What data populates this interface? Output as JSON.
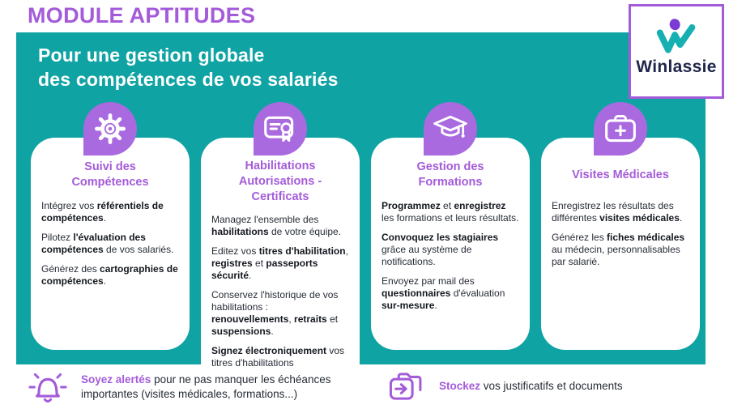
{
  "header": {
    "title": "MODULE APTITUDES",
    "heading": "Pour une gestion globale\ndes compétences de vos salariés",
    "brand": "Winlassie"
  },
  "colors": {
    "purple": "#A45BD9",
    "teal": "#10A3A4",
    "bubble": "#A969DF",
    "navy": "#20264A",
    "body": "#262C36",
    "logo_teal": "#16AFB2",
    "logo_purple": "#7B3BD4"
  },
  "cards": [
    {
      "icon": "gear-icon",
      "title": "Suivi des\nCompétences",
      "paragraphs": [
        [
          {
            "t": "Intégrez vos "
          },
          {
            "t": "référentiels de compétences",
            "b": true
          },
          {
            "t": "."
          }
        ],
        [
          {
            "t": "Pilotez "
          },
          {
            "t": "l'évaluation des compétences",
            "b": true
          },
          {
            "t": " de vos salariés."
          }
        ],
        [
          {
            "t": "Générez des "
          },
          {
            "t": "cartographies de compétences",
            "b": true
          },
          {
            "t": "."
          }
        ]
      ]
    },
    {
      "icon": "certificate-icon",
      "title": "Habilitations\nAutorisations - Certificats",
      "paragraphs": [
        [
          {
            "t": "Managez l'ensemble des "
          },
          {
            "t": "habilitations",
            "b": true
          },
          {
            "t": " de votre équipe."
          }
        ],
        [
          {
            "t": "Editez vos "
          },
          {
            "t": "titres d'habilitation",
            "b": true
          },
          {
            "t": ", "
          },
          {
            "t": "registres",
            "b": true
          },
          {
            "t": " et "
          },
          {
            "t": "passeports sécurité",
            "b": true
          },
          {
            "t": "."
          }
        ],
        [
          {
            "t": "Conservez l'historique de vos habilitations : "
          },
          {
            "t": "renouvellements",
            "b": true
          },
          {
            "t": ", "
          },
          {
            "t": "retraits",
            "b": true
          },
          {
            "t": " et "
          },
          {
            "t": "suspensions",
            "b": true
          },
          {
            "t": "."
          }
        ],
        [
          {
            "t": "Signez électroniquement",
            "b": true
          },
          {
            "t": " vos titres d'habilitations"
          }
        ]
      ]
    },
    {
      "icon": "graduation-cap-icon",
      "title": "Gestion des\nFormations",
      "paragraphs": [
        [
          {
            "t": "Programmez",
            "b": true
          },
          {
            "t": " et "
          },
          {
            "t": "enregistrez",
            "b": true
          },
          {
            "t": " les formations et leurs résultats."
          }
        ],
        [
          {
            "t": "Convoquez les stagiaires",
            "b": true
          },
          {
            "t": " grâce au système de notifications."
          }
        ],
        [
          {
            "t": "Envoyez par mail des "
          },
          {
            "t": "questionnaires",
            "b": true
          },
          {
            "t": " d'évaluation "
          },
          {
            "t": "sur-mesure",
            "b": true
          },
          {
            "t": "."
          }
        ]
      ]
    },
    {
      "icon": "medical-case-icon",
      "title": "Visites Médicales",
      "paragraphs": [
        [
          {
            "t": "Enregistrez les résultats des différentes "
          },
          {
            "t": "visites médicales",
            "b": true
          },
          {
            "t": "."
          }
        ],
        [
          {
            "t": "Générez les "
          },
          {
            "t": "fiches médicales",
            "b": true
          },
          {
            "t": " au médecin, personnalisables par salarié."
          }
        ]
      ]
    }
  ],
  "footer": {
    "items": [
      {
        "icon": "bell-icon",
        "segments": [
          {
            "t": "Soyez alertés",
            "b": true,
            "accent": true
          },
          {
            "t": " pour ne pas manquer les échéances importantes (visites médicales, formations...)"
          }
        ]
      },
      {
        "icon": "folder-arrow-icon",
        "segments": [
          {
            "t": "Stockez",
            "b": true,
            "accent": true
          },
          {
            "t": " vos justificatifs et documents"
          }
        ]
      }
    ]
  }
}
